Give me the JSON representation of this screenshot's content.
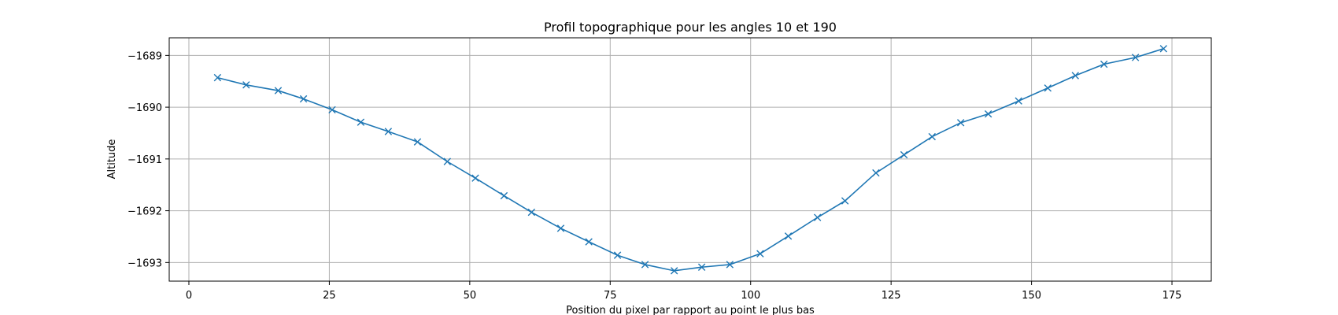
{
  "chart_data": {
    "type": "line",
    "title": "Profil topographique pour les angles 10 et 190",
    "xlabel": "Position du pixel par rapport au point le plus bas",
    "ylabel": "Altitude",
    "xlim": [
      -3.5,
      182
    ],
    "ylim": [
      -1693.36,
      -1688.66
    ],
    "xticks": [
      0,
      25,
      50,
      75,
      100,
      125,
      150,
      175
    ],
    "yticks": [
      -1693,
      -1692,
      -1691,
      -1690,
      -1689
    ],
    "grid": true,
    "marker": "x",
    "color": "#1f77b4",
    "x": [
      5.1,
      10.2,
      15.9,
      20.4,
      25.5,
      30.6,
      35.5,
      40.7,
      46.0,
      51.0,
      56.1,
      61.0,
      66.2,
      71.2,
      76.3,
      81.2,
      86.4,
      91.3,
      96.3,
      101.7,
      106.7,
      111.9,
      116.8,
      122.3,
      127.3,
      132.3,
      137.4,
      142.3,
      147.7,
      152.9,
      157.8,
      162.9,
      168.5,
      173.5
    ],
    "y": [
      -1689.43,
      -1689.57,
      -1689.68,
      -1689.84,
      -1690.05,
      -1690.29,
      -1690.47,
      -1690.67,
      -1691.05,
      -1691.37,
      -1691.71,
      -1692.03,
      -1692.34,
      -1692.6,
      -1692.86,
      -1693.04,
      -1693.16,
      -1693.09,
      -1693.04,
      -1692.83,
      -1692.49,
      -1692.13,
      -1691.81,
      -1691.27,
      -1690.92,
      -1690.57,
      -1690.3,
      -1690.13,
      -1689.88,
      -1689.63,
      -1689.39,
      -1689.17,
      -1689.04,
      -1688.87
    ]
  }
}
